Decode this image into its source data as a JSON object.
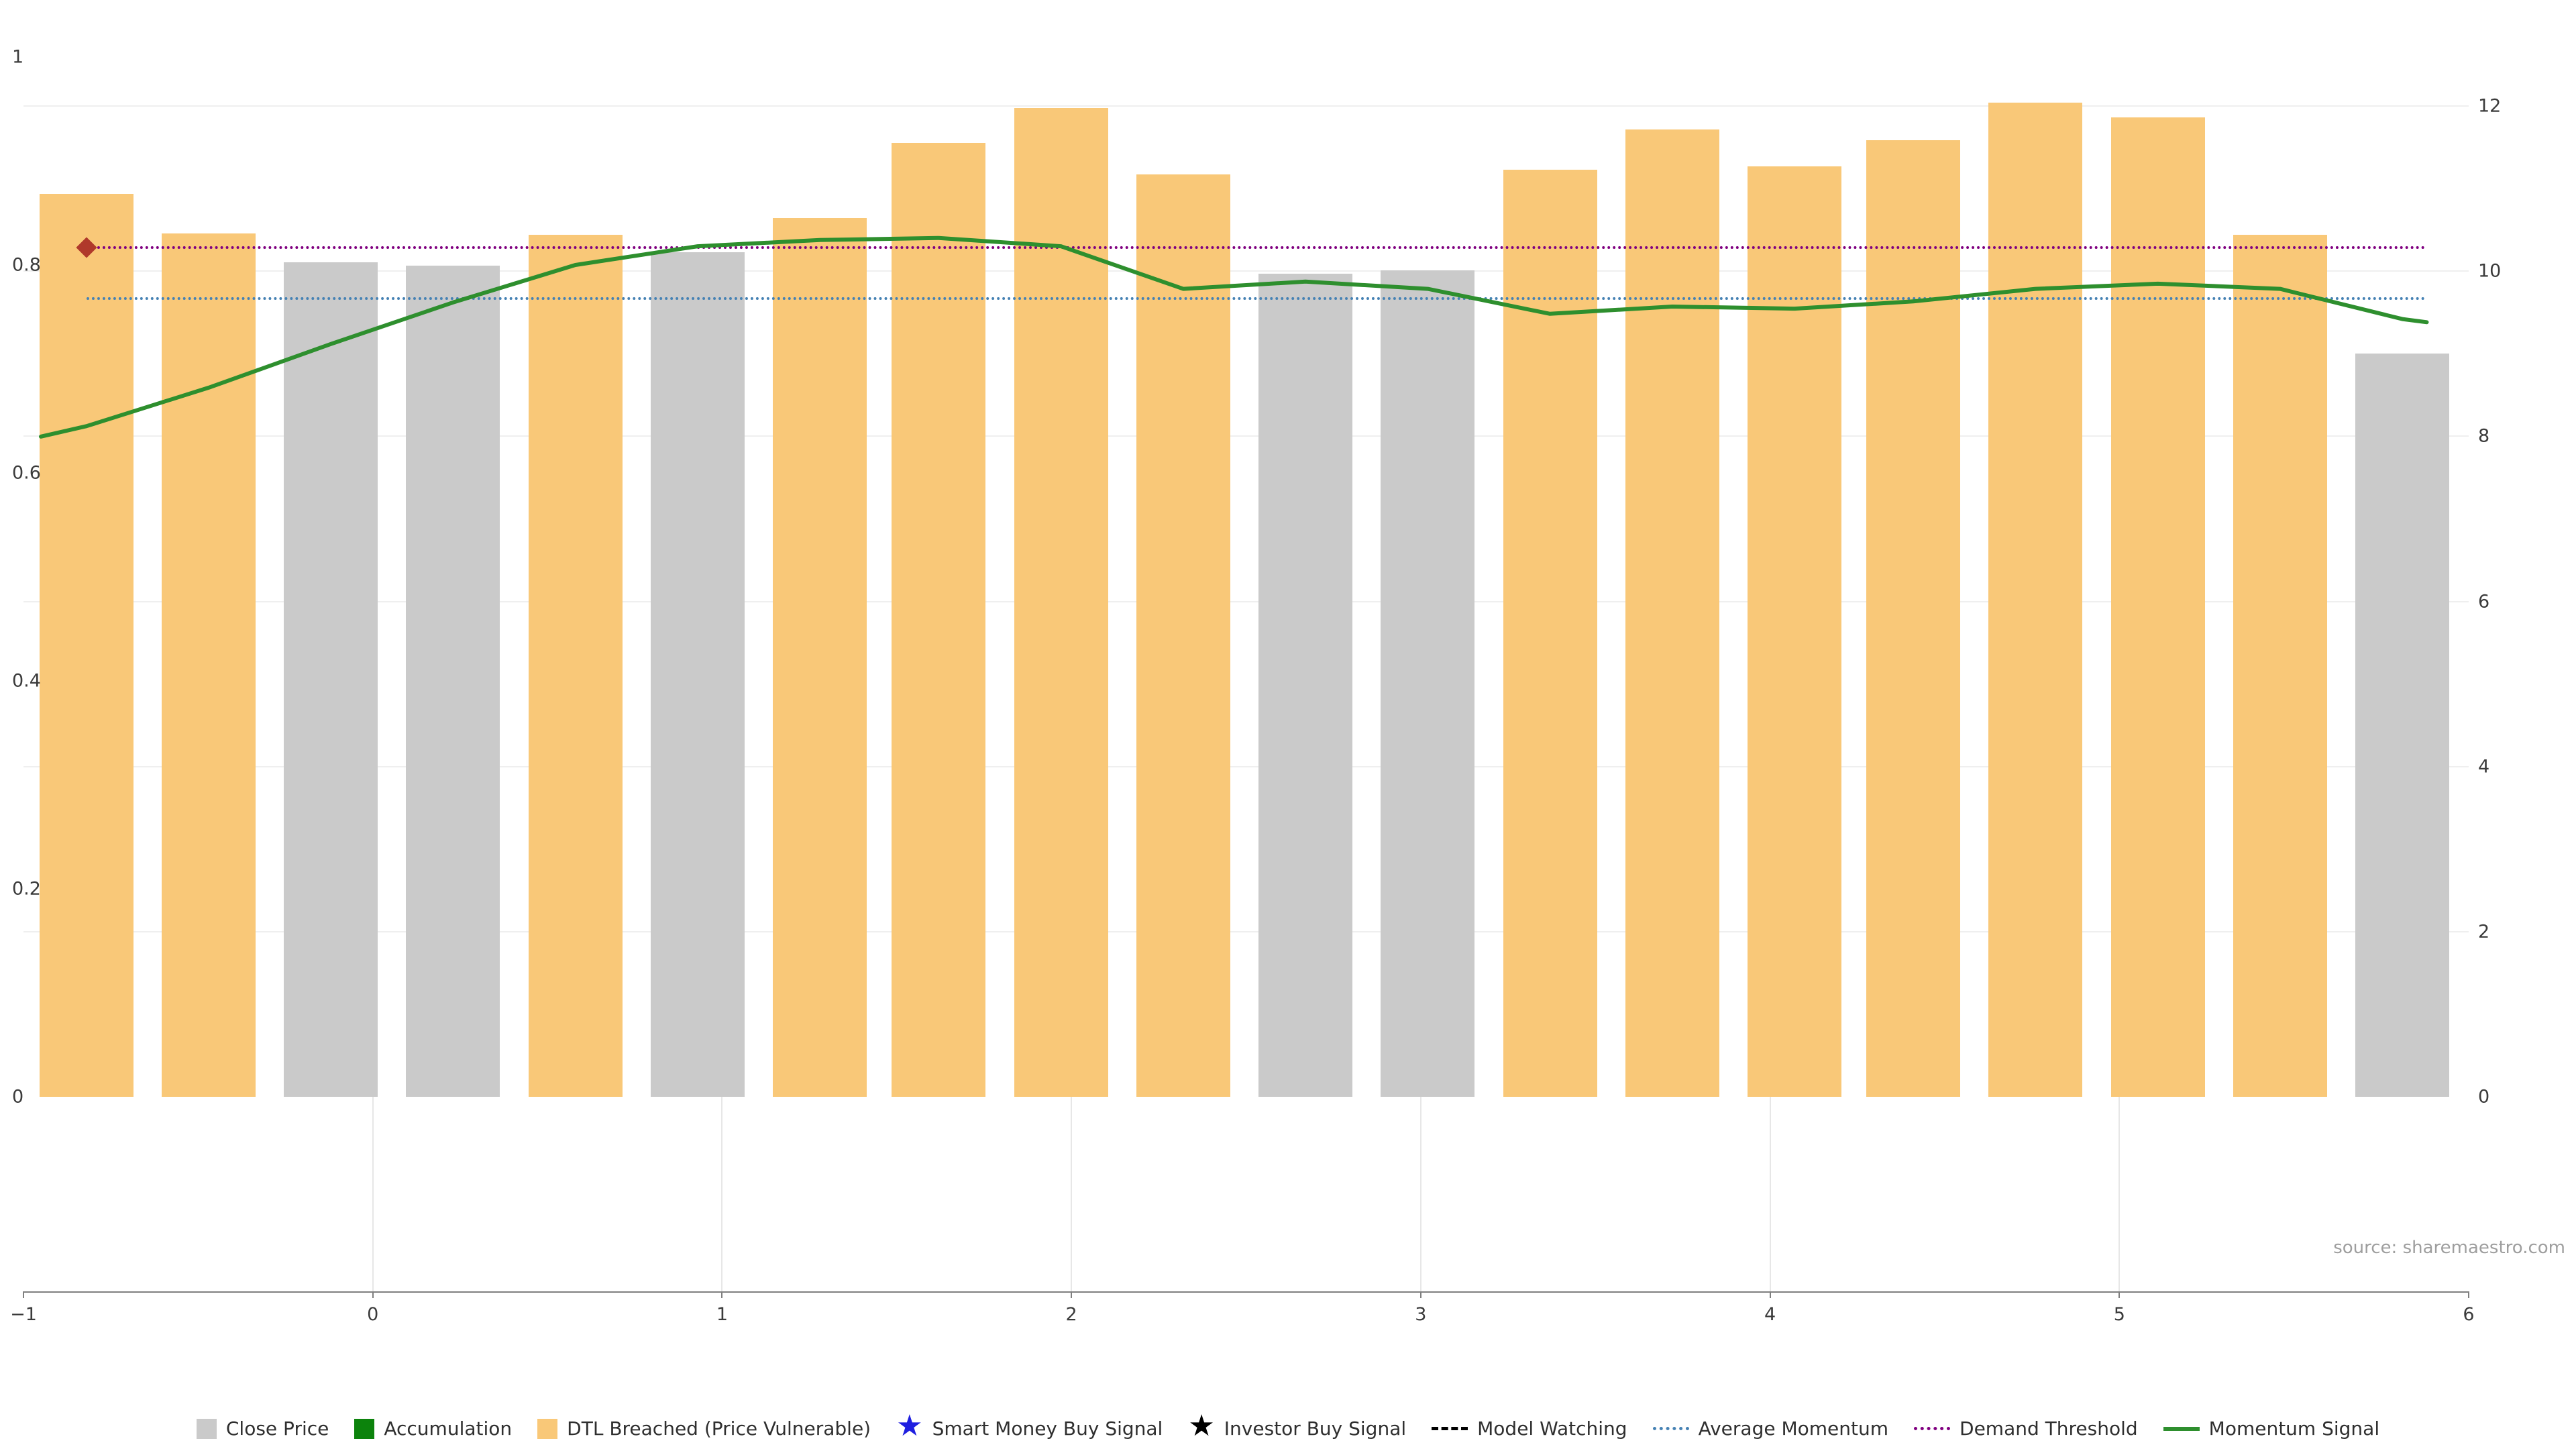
{
  "source_note": "source: sharemaestro.com",
  "colors": {
    "close_bar": "#cacaca",
    "dtl_bar": "#f9c878",
    "accumulation": "#0c830c",
    "momentum_line": "#2e8f2e",
    "average_momentum": "#4682b4",
    "demand_threshold": "#800080",
    "smart_money_star": "#1f1fe0",
    "investor_star": "#000000",
    "model_watching": "#000000",
    "marker_diamond": "#b0392b",
    "tick_text": "#3b3b3b",
    "grid": "#efefef",
    "axis_line": "#7f7f7f",
    "source_text": "#9e9e9e"
  },
  "axes": {
    "x_ticks": [
      "−1",
      "0",
      "1",
      "2",
      "3",
      "4",
      "5",
      "6"
    ],
    "x_tick_values": [
      -1,
      0,
      1,
      2,
      3,
      4,
      5,
      6
    ],
    "left_ticks": [
      "1",
      "0.8",
      "0.6",
      "0.4",
      "0.2",
      "0"
    ],
    "left_tick_values": [
      1,
      0.8,
      0.6,
      0.4,
      0.2,
      0
    ],
    "right_ticks": [
      "12",
      "10",
      "8",
      "6",
      "4",
      "2",
      "0"
    ],
    "right_tick_values": [
      12,
      10,
      8,
      6,
      4,
      2,
      0
    ]
  },
  "chart_data": {
    "type": "bar",
    "title": "",
    "xlabel": "",
    "ylabel": "",
    "xlim": [
      -1,
      6
    ],
    "ylim_left": [
      0,
      1
    ],
    "ylim_right": [
      0,
      12.6
    ],
    "grid": "horizontal-faint",
    "legend_position": "bottom-center",
    "x": [
      -0.82,
      -0.47,
      -0.12,
      0.23,
      0.58,
      0.93,
      1.28,
      1.62,
      1.97,
      2.32,
      2.67,
      3.02,
      3.37,
      3.72,
      4.07,
      4.41,
      4.76,
      5.11,
      5.46,
      5.81
    ],
    "bar_axis": "right",
    "bar_values": [
      10.94,
      10.46,
      10.11,
      10.07,
      10.44,
      10.23,
      10.64,
      11.55,
      11.98,
      11.17,
      9.97,
      10.01,
      11.23,
      11.72,
      11.27,
      11.59,
      12.04,
      11.86,
      10.44,
      9.0
    ],
    "bar_kinds": [
      "dtl",
      "dtl",
      "close",
      "close",
      "dtl",
      "close",
      "dtl",
      "dtl",
      "dtl",
      "dtl",
      "close",
      "close",
      "dtl",
      "dtl",
      "dtl",
      "dtl",
      "dtl",
      "dtl",
      "dtl",
      "close"
    ],
    "momentum_signal": {
      "axis": "left",
      "x": [
        -0.95,
        -0.82,
        -0.47,
        -0.12,
        0.23,
        0.58,
        0.93,
        1.28,
        1.62,
        1.97,
        2.32,
        2.67,
        3.02,
        3.37,
        3.72,
        4.07,
        4.41,
        4.76,
        5.11,
        5.46,
        5.81,
        5.88
      ],
      "values": [
        0.635,
        0.645,
        0.682,
        0.724,
        0.764,
        0.8,
        0.818,
        0.824,
        0.826,
        0.818,
        0.777,
        0.784,
        0.777,
        0.753,
        0.76,
        0.758,
        0.765,
        0.777,
        0.782,
        0.777,
        0.748,
        0.745
      ]
    },
    "average_momentum": 0.768,
    "demand_threshold": 0.817,
    "markers": [
      {
        "type": "diamond",
        "x": -0.82,
        "y": 0.817
      }
    ]
  },
  "legend": [
    {
      "label": "Close Price",
      "swatch": "square",
      "color_key": "close_bar"
    },
    {
      "label": "Accumulation",
      "swatch": "square",
      "color_key": "accumulation"
    },
    {
      "label": "DTL Breached (Price Vulnerable)",
      "swatch": "square",
      "color_key": "dtl_bar"
    },
    {
      "label": "Smart Money Buy Signal",
      "swatch": "star",
      "color_key": "smart_money_star"
    },
    {
      "label": "Investor Buy Signal",
      "swatch": "star",
      "color_key": "investor_star"
    },
    {
      "label": "Model Watching",
      "swatch": "dashed",
      "color_key": "model_watching"
    },
    {
      "label": "Average Momentum",
      "swatch": "dotted",
      "color_key": "average_momentum"
    },
    {
      "label": "Demand Threshold",
      "swatch": "dotted",
      "color_key": "demand_threshold"
    },
    {
      "label": "Momentum Signal",
      "swatch": "solid",
      "color_key": "momentum_line"
    }
  ]
}
